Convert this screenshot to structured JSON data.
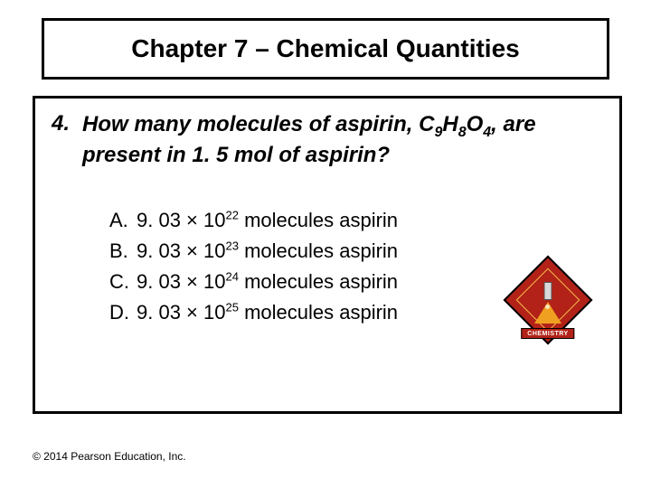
{
  "title": "Chapter 7 – Chemical Quantities",
  "question": {
    "number": "4.",
    "prefix": "How many molecules of aspirin, C",
    "sub1": "9",
    "mid1": "H",
    "sub2": "8",
    "mid2": "O",
    "sub3": "4",
    "suffix": ", are present in 1. 5 mol of aspirin?"
  },
  "answers": [
    {
      "label": "A.",
      "coef": "9. 03 × 10",
      "exp": "22",
      "tail": " molecules aspirin"
    },
    {
      "label": "B.",
      "coef": "9. 03 × 10",
      "exp": "23",
      "tail": " molecules aspirin"
    },
    {
      "label": "C.",
      "coef": "9. 03 × 10",
      "exp": "24",
      "tail": " molecules aspirin"
    },
    {
      "label": "D.",
      "coef": "9. 03 × 10",
      "exp": "25",
      "tail": " molecules aspirin"
    }
  ],
  "copyright": "© 2014 Pearson Education, Inc.",
  "badge": {
    "banner": "CHEMISTRY"
  },
  "colors": {
    "border": "#000000",
    "background": "#ffffff",
    "badge_red": "#b22218",
    "badge_gold": "#f5c04a",
    "flask": "#f0a020"
  }
}
